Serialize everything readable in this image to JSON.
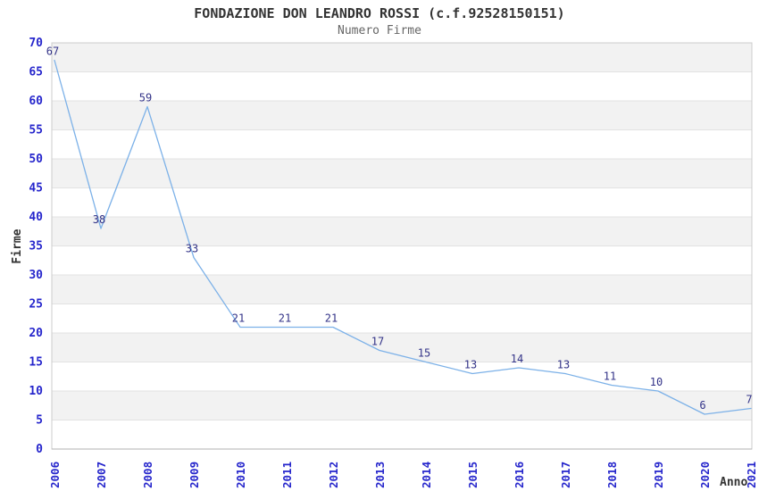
{
  "header": {
    "title": "FONDAZIONE DON LEANDRO ROSSI (c.f.92528150151)",
    "subtitle": "Numero Firme"
  },
  "chart_data": {
    "type": "line",
    "title": "FONDAZIONE DON LEANDRO ROSSI (c.f.92528150151)",
    "subtitle": "Numero Firme",
    "xlabel": "Anno",
    "ylabel": "Firme",
    "x": [
      2006,
      2007,
      2008,
      2009,
      2010,
      2011,
      2012,
      2013,
      2014,
      2015,
      2016,
      2017,
      2018,
      2019,
      2020,
      2021
    ],
    "values": [
      67,
      38,
      59,
      33,
      21,
      21,
      21,
      17,
      15,
      13,
      14,
      13,
      11,
      10,
      6,
      7
    ],
    "ylim": [
      0,
      70
    ],
    "ytick_step": 5,
    "grid": true,
    "legend": "none",
    "band_alternating": true,
    "colors": {
      "line": "#7cb1e8",
      "band_light": "#ffffff",
      "band_dark": "#f2f2f2",
      "gridline": "#e2e2e2",
      "plot_border": "#cccccc",
      "axis_bottom": "#b0b0b0",
      "tick_label": "#2626cc",
      "data_label": "#333388",
      "title": "#333333",
      "subtitle": "#666666"
    }
  }
}
